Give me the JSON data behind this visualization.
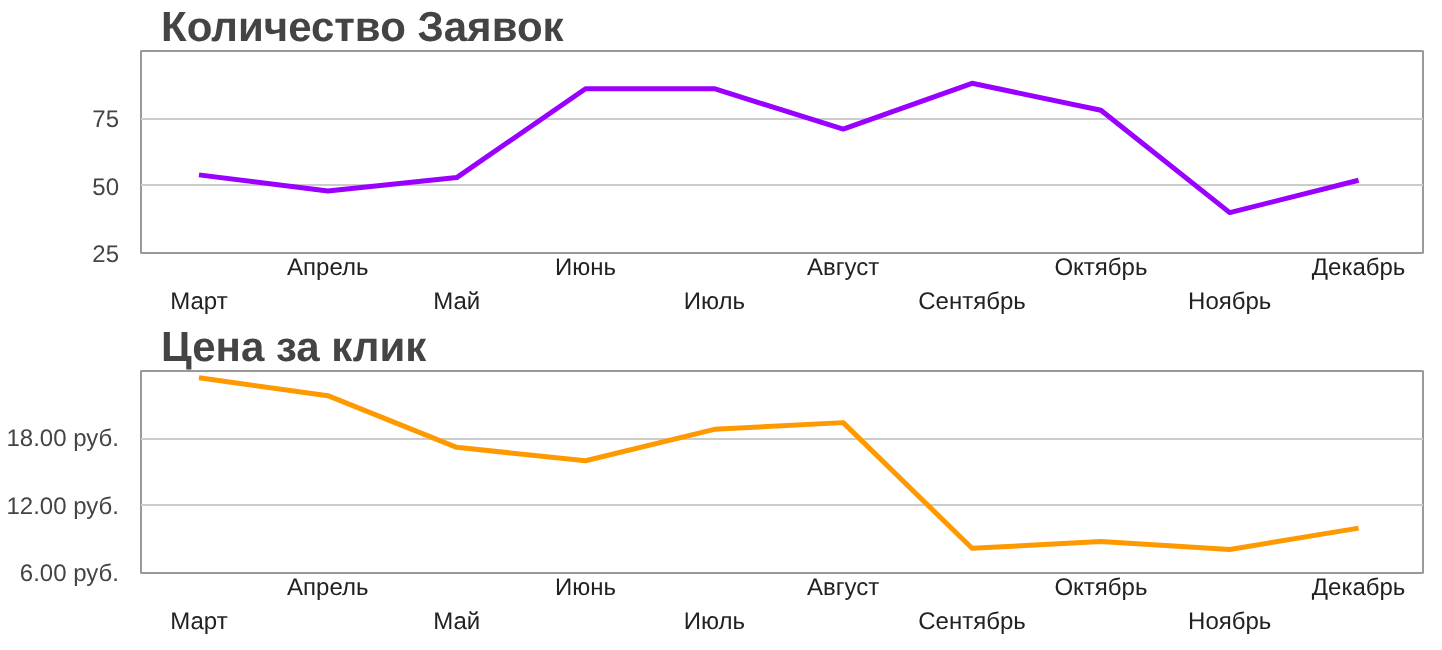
{
  "chart_data": [
    {
      "type": "line",
      "title": "Количество Заявок",
      "categories": [
        "Март",
        "Апрель",
        "Май",
        "Июнь",
        "Июль",
        "Август",
        "Сентябрь",
        "Октябрь",
        "Ноябрь",
        "Декабрь"
      ],
      "series": [
        {
          "color": "#9900ff",
          "values": [
            54,
            48,
            53,
            86,
            86,
            71,
            88,
            78,
            40,
            52
          ]
        }
      ],
      "ylim": [
        25,
        100
      ],
      "yticks": [
        25,
        50,
        75
      ],
      "grid": "y",
      "line_style": "solid"
    },
    {
      "type": "line",
      "title": "Цена за клик",
      "categories": [
        "Март",
        "Апрель",
        "Май",
        "Июнь",
        "Июль",
        "Август",
        "Сентябрь",
        "Октябрь",
        "Ноябрь",
        "Декабрь"
      ],
      "series": [
        {
          "color": "#ff9900",
          "values": [
            23.4,
            21.8,
            17.2,
            16,
            18.8,
            19.4,
            8.2,
            8.8,
            8.1,
            10
          ]
        }
      ],
      "ylim": [
        6,
        24
      ],
      "yticks": [
        {
          "value": 6,
          "label": "6.00 руб."
        },
        {
          "value": 12,
          "label": "12.00 руб."
        },
        {
          "value": 18,
          "label": "18.00 руб."
        }
      ],
      "grid": "y",
      "line_style": "solid"
    }
  ]
}
